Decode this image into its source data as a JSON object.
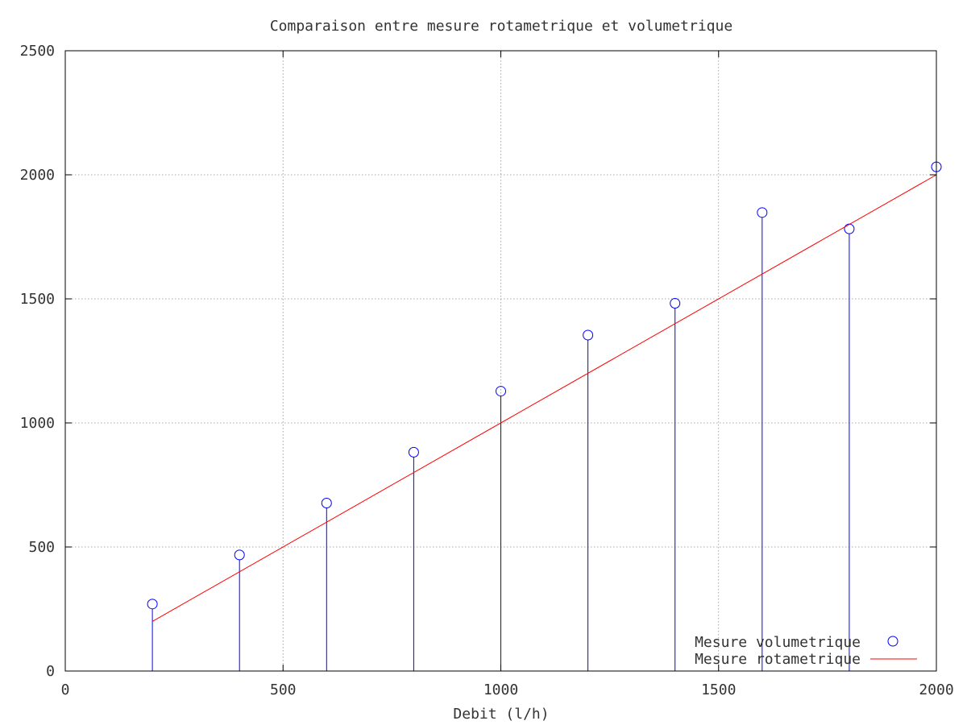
{
  "chart_data": {
    "type": "scatter",
    "title": "Comparaison entre mesure rotametrique et volumetrique",
    "xlabel": "Debit (l/h)",
    "ylabel": "",
    "xlim": [
      0,
      2000
    ],
    "ylim": [
      0,
      2500
    ],
    "xticks": [
      "0",
      "500",
      "1000",
      "1500",
      "2000"
    ],
    "yticks": [
      "0",
      "500",
      "1000",
      "1500",
      "2000",
      "2500"
    ],
    "grid": true,
    "legend_position": "bottom-right",
    "series": [
      {
        "name": "Mesure volumetrique",
        "style": "stem-circle",
        "color": "#0000ff",
        "x": [
          200,
          400,
          600,
          800,
          1000,
          1200,
          1400,
          1600,
          1800,
          2000
        ],
        "y": [
          270,
          468,
          677,
          882,
          1128,
          1354,
          1482,
          1848,
          1782,
          2032
        ]
      },
      {
        "name": "Mesure rotametrique",
        "style": "line",
        "color": "#ff0000",
        "x": [
          200,
          2000
        ],
        "y": [
          200,
          2000
        ]
      }
    ]
  }
}
